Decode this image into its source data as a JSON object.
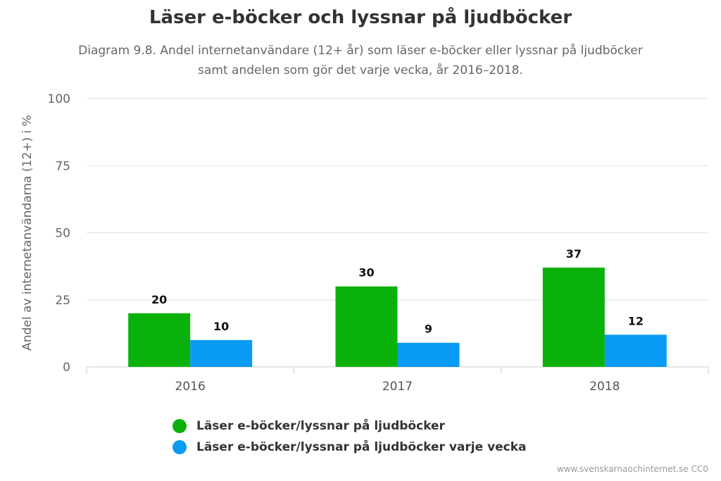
{
  "chart_data": {
    "type": "bar",
    "title": "Läser e-böcker och lyssnar på ljudböcker",
    "subtitle_lines": [
      "Diagram 9.8. Andel internetanvändare (12+ år) som läser e-böcker eller lyssnar på ljudböcker",
      "samt andelen som gör det varje vecka, år 2016–2018."
    ],
    "ylabel": "Andel av internetanvändarna (12+) i %",
    "ylim": [
      0,
      100
    ],
    "yticks": [
      0,
      25,
      50,
      75,
      100
    ],
    "categories": [
      "2016",
      "2017",
      "2018"
    ],
    "series": [
      {
        "name": "Läser e-böcker/lyssnar på ljudböcker",
        "color": "#0bb10b",
        "values": [
          20,
          30,
          37
        ]
      },
      {
        "name": "Läser e-böcker/lyssnar på ljudböcker varje vecka",
        "color": "#0a9bf5",
        "values": [
          10,
          9,
          12
        ]
      }
    ],
    "grid": true,
    "legend_position": "bottom-left"
  },
  "credit": "www.svenskarnaochinternet.se CC0"
}
